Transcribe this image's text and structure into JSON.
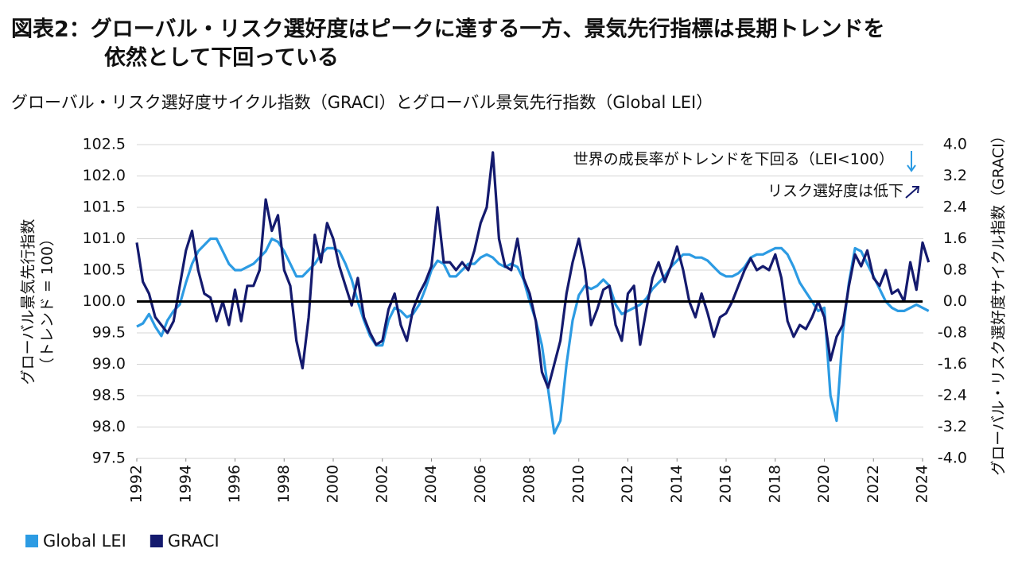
{
  "chart_data": {
    "type": "line",
    "title": [
      "図表2：グローバル・リスク選好度はピークに達する一方、景気先行指標は長期トレンドを",
      "依然として下回っている"
    ],
    "subtitle": "グローバル・リスク選好度サイクル指数（GRACI）とグローバル景気先行指数（Global LEI）",
    "ylabel": [
      "グローバル景気先行指数",
      "（トレンド = 100）"
    ],
    "y2label": "グローバル・リスク選好度サイクル指数（GRACI）",
    "annotations": [
      "世界の成長率がトレンドを下回る（LEI<100）",
      "リスク選好度は低下"
    ],
    "reference_line": 100,
    "xlim": [
      1992,
      2024
    ],
    "xticks": [
      1992,
      1994,
      1996,
      1998,
      2000,
      2002,
      2004,
      2006,
      2008,
      2010,
      2012,
      2014,
      2016,
      2018,
      2020,
      2022,
      2024
    ],
    "ylim": [
      97.5,
      102.5
    ],
    "yticks": [
      97.5,
      {
        "value": 98,
        "label": "98.0"
      },
      98.5,
      {
        "value": 99,
        "label": "99.0"
      },
      99.5,
      {
        "value": 100,
        "label": "100.0"
      },
      100.5,
      {
        "value": 101,
        "label": "101.0"
      },
      101.5,
      {
        "value": 102,
        "label": "102.0"
      },
      102.5
    ],
    "y2lim": [
      -4,
      4
    ],
    "y2ticks": [
      {
        "value": -4,
        "label": "-4.0"
      },
      -3.2,
      -2.4,
      -1.6,
      -0.8,
      {
        "value": 0,
        "label": "0.0"
      },
      0.8,
      1.6,
      2.4,
      3.2,
      {
        "value": 4,
        "label": "4.0"
      }
    ],
    "x": [
      1992,
      1992.25,
      1992.5,
      1992.75,
      1993,
      1993.25,
      1993.5,
      1993.75,
      1994,
      1994.25,
      1994.5,
      1994.75,
      1995,
      1995.25,
      1995.5,
      1995.75,
      1996,
      1996.25,
      1996.5,
      1996.75,
      1997,
      1997.25,
      1997.5,
      1997.75,
      1998,
      1998.25,
      1998.5,
      1998.75,
      1999,
      1999.25,
      1999.5,
      1999.75,
      2000,
      2000.25,
      2000.5,
      2000.75,
      2001,
      2001.25,
      2001.5,
      2001.75,
      2002,
      2002.25,
      2002.5,
      2002.75,
      2003,
      2003.25,
      2003.5,
      2003.75,
      2004,
      2004.25,
      2004.5,
      2004.75,
      2005,
      2005.25,
      2005.5,
      2005.75,
      2006,
      2006.25,
      2006.5,
      2006.75,
      2007,
      2007.25,
      2007.5,
      2007.75,
      2008,
      2008.25,
      2008.5,
      2008.75,
      2009,
      2009.25,
      2009.5,
      2009.75,
      2010,
      2010.25,
      2010.5,
      2010.75,
      2011,
      2011.25,
      2011.5,
      2011.75,
      2012,
      2012.25,
      2012.5,
      2012.75,
      2013,
      2013.25,
      2013.5,
      2013.75,
      2014,
      2014.25,
      2014.5,
      2014.75,
      2015,
      2015.25,
      2015.5,
      2015.75,
      2016,
      2016.25,
      2016.5,
      2016.75,
      2017,
      2017.25,
      2017.5,
      2017.75,
      2018,
      2018.25,
      2018.5,
      2018.75,
      2019,
      2019.25,
      2019.5,
      2019.75,
      2020,
      2020.25,
      2020.5,
      2020.75,
      2021,
      2021.25,
      2021.5,
      2021.75,
      2022,
      2022.25,
      2022.5,
      2022.75,
      2023,
      2023.25,
      2023.5,
      2023.75,
      2024,
      2024.25
    ],
    "series": [
      {
        "name": "Global LEI",
        "color": "#2c9be3",
        "values": [
          99.6,
          99.65,
          99.8,
          99.6,
          99.45,
          99.7,
          99.85,
          99.95,
          100.3,
          100.6,
          100.8,
          100.9,
          101.0,
          101.0,
          100.8,
          100.6,
          100.5,
          100.5,
          100.55,
          100.6,
          100.7,
          100.8,
          101.0,
          100.95,
          100.8,
          100.6,
          100.4,
          100.4,
          100.5,
          100.6,
          100.75,
          100.85,
          100.85,
          100.8,
          100.6,
          100.35,
          100.0,
          99.7,
          99.45,
          99.3,
          99.3,
          99.7,
          99.9,
          99.85,
          99.75,
          99.8,
          99.95,
          100.2,
          100.5,
          100.65,
          100.6,
          100.4,
          100.4,
          100.5,
          100.6,
          100.6,
          100.7,
          100.75,
          100.7,
          100.6,
          100.55,
          100.6,
          100.55,
          100.35,
          100.0,
          99.7,
          99.3,
          98.6,
          97.9,
          98.1,
          99.0,
          99.7,
          100.1,
          100.25,
          100.2,
          100.25,
          100.35,
          100.25,
          99.95,
          99.8,
          99.85,
          99.9,
          99.95,
          100.05,
          100.2,
          100.3,
          100.4,
          100.55,
          100.65,
          100.75,
          100.75,
          100.7,
          100.7,
          100.65,
          100.55,
          100.45,
          100.4,
          100.4,
          100.45,
          100.55,
          100.7,
          100.75,
          100.75,
          100.8,
          100.85,
          100.85,
          100.75,
          100.55,
          100.3,
          100.15,
          100.0,
          99.85,
          99.9,
          98.5,
          98.1,
          99.5,
          100.3,
          100.85,
          100.8,
          100.6,
          100.4,
          100.2,
          100.0,
          99.9,
          99.85,
          99.85,
          99.9,
          99.95,
          99.9,
          99.85
        ]
      },
      {
        "name": "GRACI",
        "color": "#141a6e",
        "axis": "y2",
        "values": [
          1.5,
          0.5,
          0.2,
          -0.4,
          -0.6,
          -0.8,
          -0.5,
          0.4,
          1.3,
          1.8,
          0.8,
          0.2,
          0.1,
          -0.5,
          0.0,
          -0.6,
          0.3,
          -0.5,
          0.4,
          0.4,
          0.8,
          2.6,
          1.8,
          2.2,
          0.8,
          0.4,
          -1.0,
          -1.7,
          -0.4,
          1.7,
          1.0,
          2.0,
          1.6,
          0.9,
          0.4,
          -0.1,
          0.6,
          -0.4,
          -0.8,
          -1.1,
          -1.0,
          -0.2,
          0.2,
          -0.6,
          -1.0,
          -0.2,
          0.2,
          0.5,
          0.9,
          2.4,
          1.0,
          1.0,
          0.8,
          1.0,
          0.8,
          1.3,
          2.0,
          2.4,
          3.8,
          1.6,
          0.9,
          0.8,
          1.6,
          0.6,
          0.2,
          -0.5,
          -1.8,
          -2.2,
          -1.6,
          -1.0,
          0.2,
          1.0,
          1.6,
          0.8,
          -0.6,
          -0.2,
          0.3,
          0.4,
          -0.6,
          -1.0,
          0.2,
          0.4,
          -1.1,
          -0.2,
          0.6,
          1.0,
          0.5,
          0.9,
          1.4,
          0.8,
          0.0,
          -0.4,
          0.2,
          -0.3,
          -0.9,
          -0.4,
          -0.3,
          0.0,
          0.4,
          0.8,
          1.1,
          0.8,
          0.9,
          0.8,
          1.2,
          0.6,
          -0.5,
          -0.9,
          -0.6,
          -0.7,
          -0.4,
          0.0,
          -0.4,
          -1.5,
          -0.9,
          -0.6,
          0.4,
          1.2,
          0.9,
          1.3,
          0.6,
          0.4,
          0.8,
          0.2,
          0.3,
          0.0,
          1.0,
          0.3,
          1.5,
          1.0
        ]
      }
    ]
  }
}
